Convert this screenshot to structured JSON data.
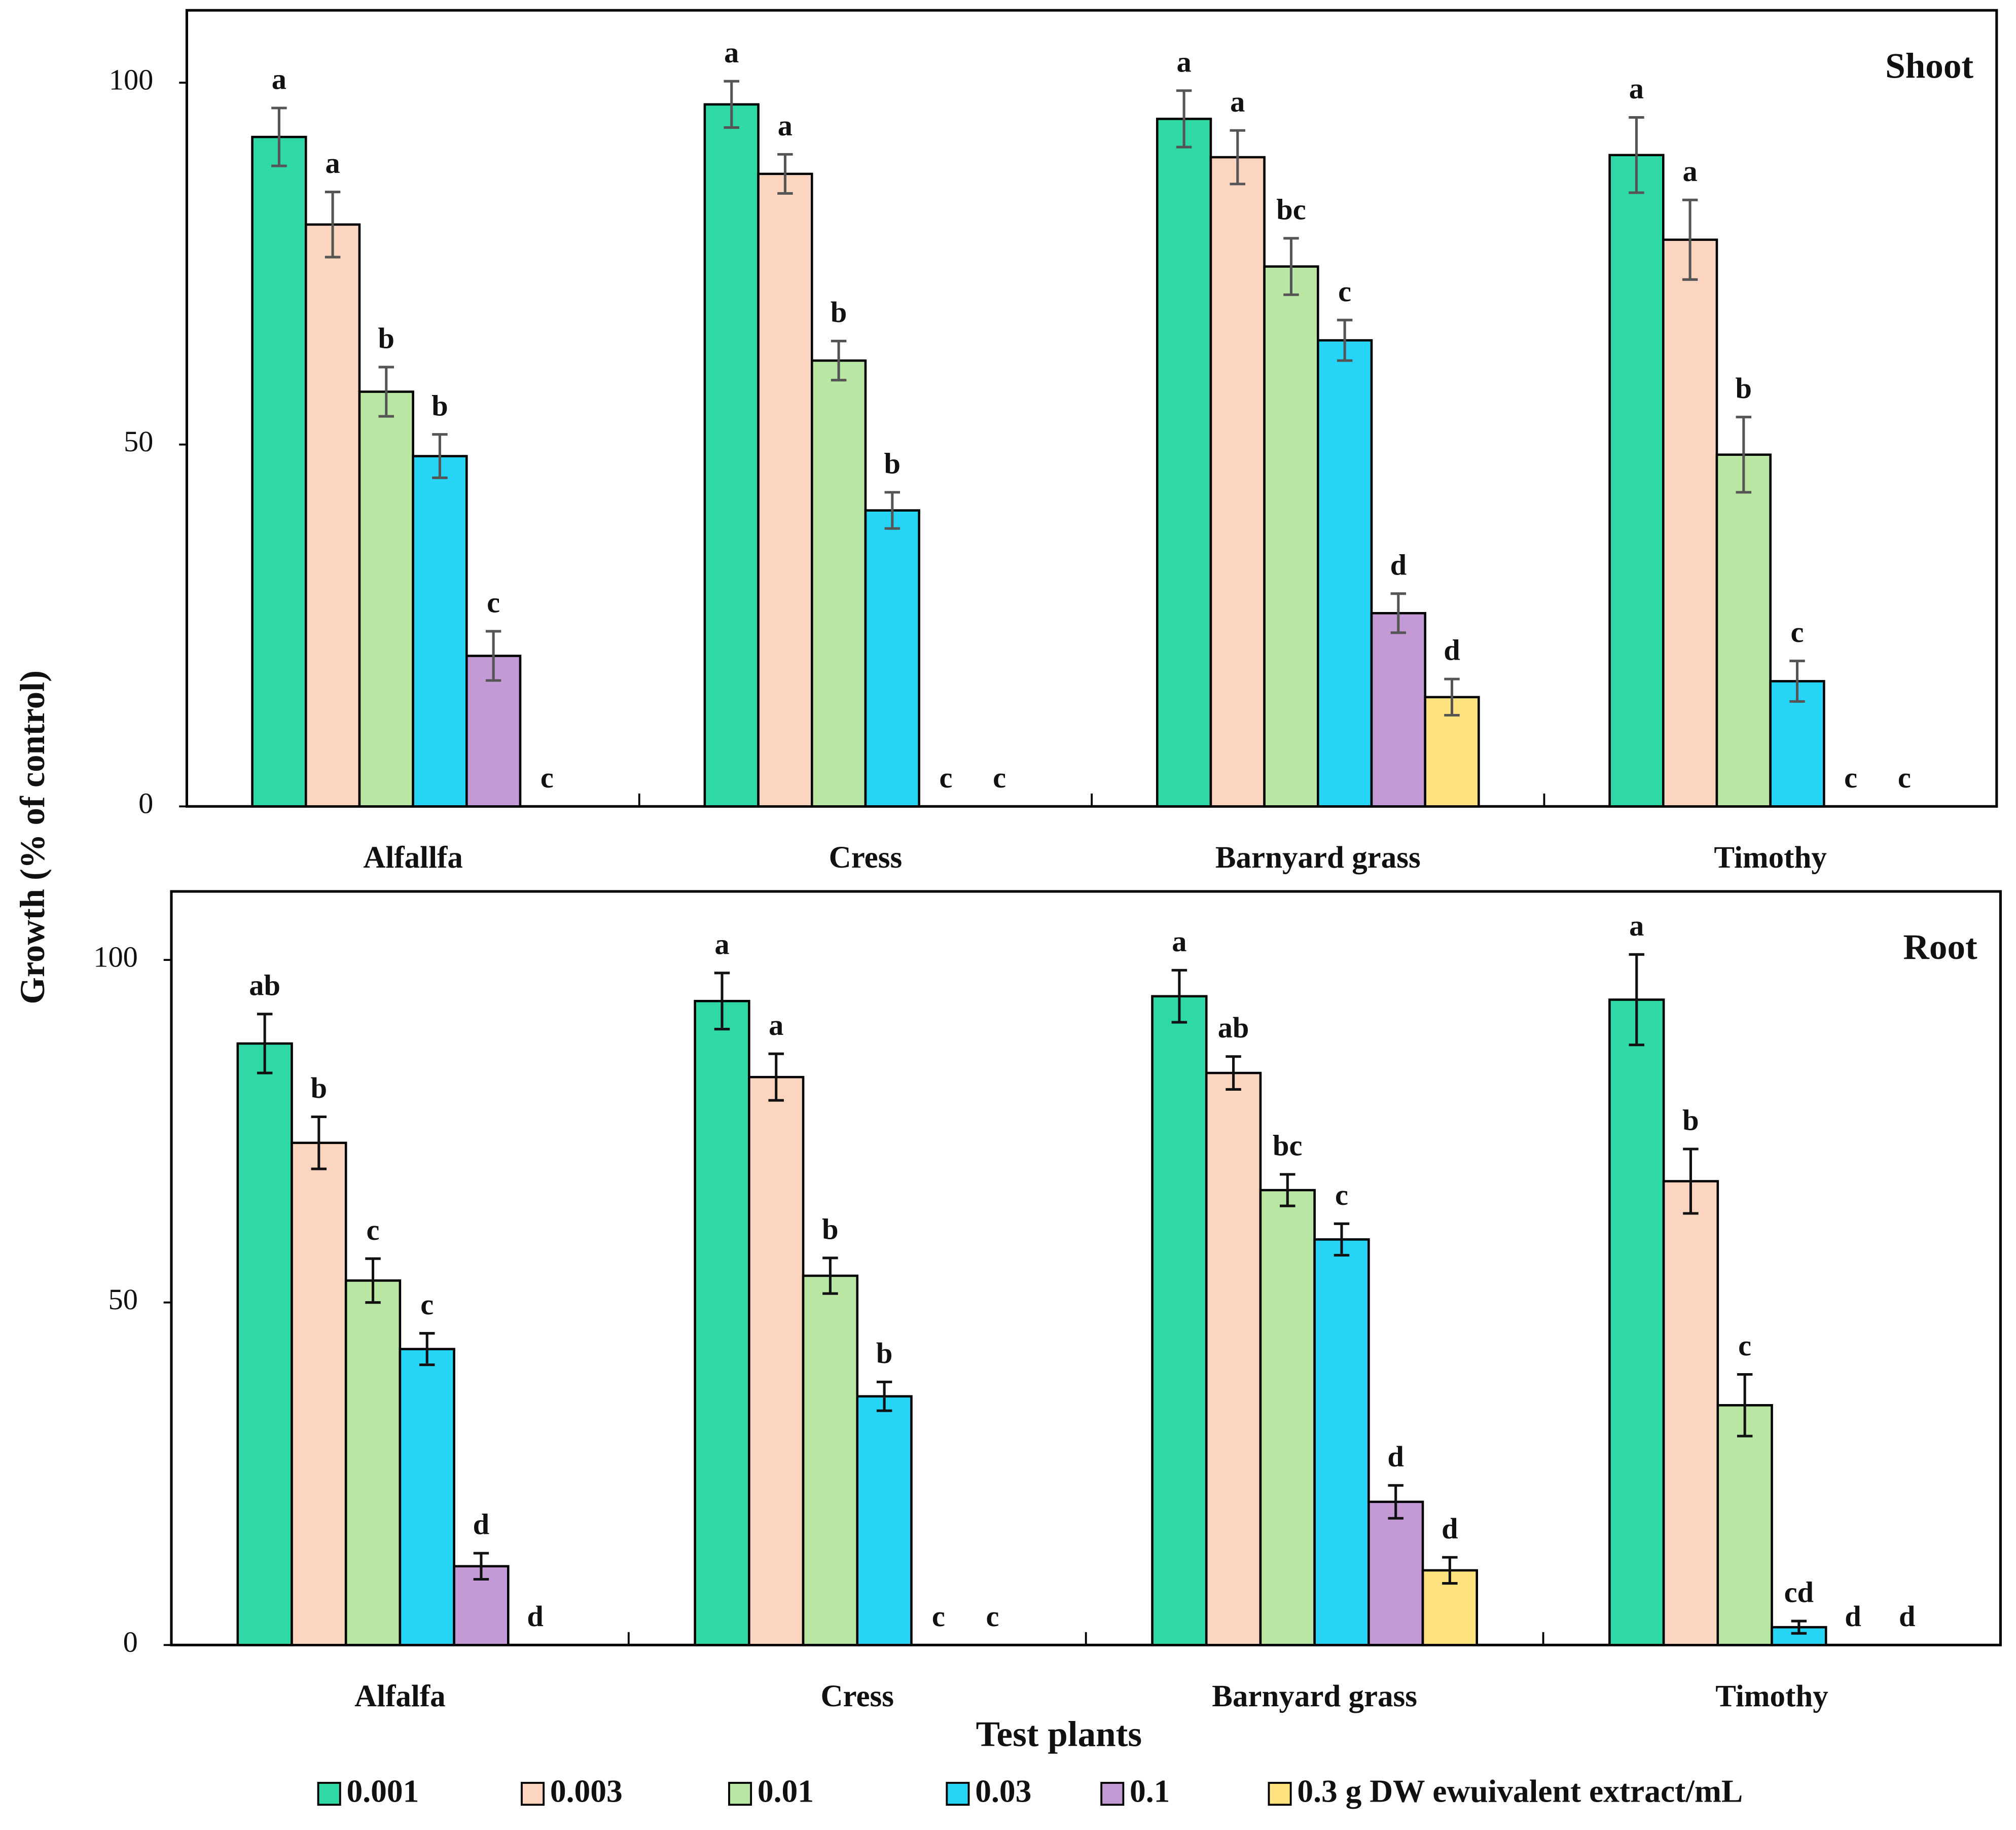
{
  "chart_data": [
    {
      "type": "bar",
      "title": "Shoot",
      "y_label": "Growth (% of control)",
      "categories": [
        "Alfallfa",
        "Cress",
        "Barnyard grass",
        "Timothy"
      ],
      "ylim": [
        0,
        110
      ],
      "yticks": [
        0,
        50,
        100
      ],
      "series": [
        {
          "name": "0.001",
          "color": "#2fd9a6",
          "values": [
            92.5,
            97,
            95,
            90
          ],
          "errors": [
            4,
            3.2,
            3.9,
            5.2
          ],
          "letters": [
            "a",
            "a",
            "a",
            "a"
          ]
        },
        {
          "name": "0.003",
          "color": "#fcd5c0",
          "values": [
            80.4,
            87.4,
            89.7,
            78.3
          ],
          "errors": [
            4.5,
            2.7,
            3.7,
            5.5
          ],
          "letters": [
            "a",
            "a",
            "a",
            "a"
          ]
        },
        {
          "name": "0.01",
          "color": "#b9e6a3",
          "values": [
            57.3,
            61.6,
            74.6,
            48.6
          ],
          "errors": [
            3.4,
            2.7,
            3.9,
            5.2
          ],
          "letters": [
            "b",
            "b",
            "bc",
            "b"
          ]
        },
        {
          "name": "0.03",
          "color": "#26d4f5",
          "values": [
            48.4,
            40.9,
            64.4,
            17.3
          ],
          "errors": [
            3,
            2.5,
            2.8,
            2.8
          ],
          "letters": [
            "b",
            "b",
            "c",
            "c"
          ]
        },
        {
          "name": "0.1",
          "color": "#c39ad6",
          "values": [
            20.8,
            0,
            26.7,
            0
          ],
          "errors": [
            3.4,
            null,
            2.7,
            null
          ],
          "letters": [
            "c",
            "c",
            "d",
            "c"
          ]
        },
        {
          "name": "0.3 g DW ewuivalent extract/mL",
          "color": "#fde27e",
          "values": [
            0,
            0,
            15.1,
            0
          ],
          "errors": [
            null,
            null,
            2.5,
            null
          ],
          "letters": [
            "c",
            "c",
            "d",
            "c"
          ]
        }
      ]
    },
    {
      "type": "bar",
      "title": "Root",
      "x_label": "Test plants",
      "categories": [
        "Alfalfa",
        "Cress",
        "Barnyard grass",
        "Timothy"
      ],
      "ylim": [
        0,
        110
      ],
      "yticks": [
        0,
        50,
        100
      ],
      "series": [
        {
          "name": "0.001",
          "color": "#2fd9a6",
          "values": [
            87.8,
            94,
            94.7,
            94.2
          ],
          "errors": [
            4.3,
            4.1,
            3.8,
            6.6
          ],
          "letters": [
            "ab",
            "a",
            "a",
            "a"
          ]
        },
        {
          "name": "0.003",
          "color": "#fcd5c0",
          "values": [
            73.3,
            82.9,
            83.5,
            67.7
          ],
          "errors": [
            3.8,
            3.4,
            2.4,
            4.7
          ],
          "letters": [
            "b",
            "a",
            "ab",
            "b"
          ]
        },
        {
          "name": "0.01",
          "color": "#b9e6a3",
          "values": [
            53.2,
            53.9,
            66.4,
            35
          ],
          "errors": [
            3.2,
            2.6,
            2.3,
            4.5
          ],
          "letters": [
            "c",
            "b",
            "bc",
            "c"
          ]
        },
        {
          "name": "0.03",
          "color": "#26d4f5",
          "values": [
            43.2,
            36.3,
            59.2,
            2.6
          ],
          "errors": [
            2.3,
            2.1,
            2.3,
            0.9
          ],
          "letters": [
            "c",
            "b",
            "c",
            "cd"
          ]
        },
        {
          "name": "0.1",
          "color": "#c39ad6",
          "values": [
            11.5,
            0,
            20.9,
            0
          ],
          "errors": [
            1.9,
            null,
            2.4,
            null
          ],
          "letters": [
            "d",
            "c",
            "d",
            "d"
          ]
        },
        {
          "name": "0.3 g DW ewuivalent extract/mL",
          "color": "#fde27e",
          "values": [
            0,
            0,
            10.9,
            0
          ],
          "errors": [
            null,
            null,
            1.9,
            null
          ],
          "letters": [
            "d",
            "c",
            "d",
            "d"
          ]
        }
      ]
    }
  ]
}
